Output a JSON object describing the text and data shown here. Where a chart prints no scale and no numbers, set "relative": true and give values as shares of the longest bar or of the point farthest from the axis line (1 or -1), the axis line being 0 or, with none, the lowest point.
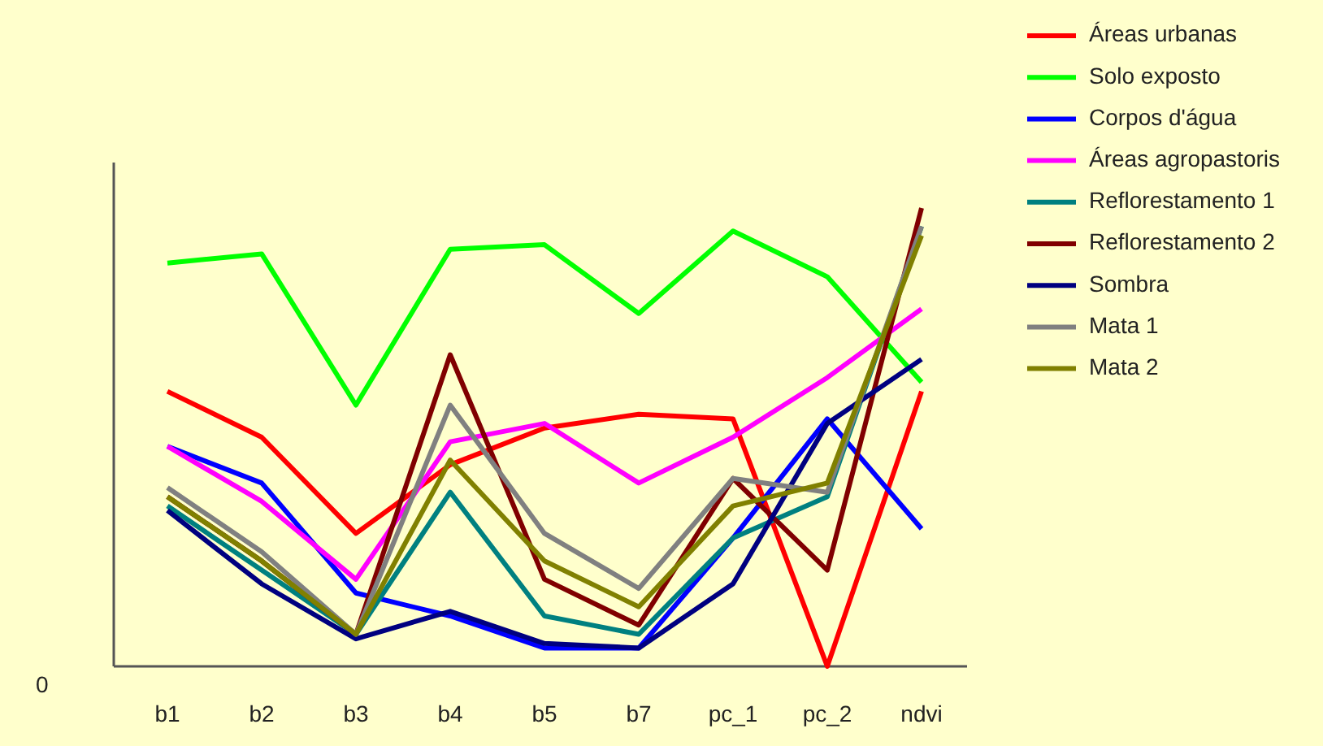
{
  "chart_data": {
    "type": "line",
    "relative": true,
    "categories": [
      "b1",
      "b2",
      "b3",
      "b4",
      "b5",
      "b7",
      "pc_1",
      "pc_2",
      "ndvi"
    ],
    "legend": "right",
    "grid": false,
    "marker": "none",
    "line_style": "solid",
    "annotations": [
      "0"
    ],
    "series": [
      {
        "name": "Áreas urbanas",
        "color": "#ff0000",
        "values": [
          0.6,
          0.5,
          0.29,
          0.44,
          0.52,
          0.55,
          0.54,
          0,
          0.6
        ]
      },
      {
        "name": "Solo exposto",
        "color": "#00ff00",
        "values": [
          0.88,
          0.9,
          0.57,
          0.91,
          0.92,
          0.77,
          0.95,
          0.85,
          0.62
        ]
      },
      {
        "name": "Corpos d'água",
        "color": "#0000ff",
        "values": [
          0.48,
          0.4,
          0.16,
          0.11,
          0.04,
          0.04,
          0.28,
          0.54,
          0.3
        ]
      },
      {
        "name": "Áreas agropastoris",
        "color": "#ff00ff",
        "values": [
          0.48,
          0.36,
          0.19,
          0.49,
          0.53,
          0.4,
          0.5,
          0.63,
          0.78
        ]
      },
      {
        "name": "Reflorestamento 1",
        "color": "#008080",
        "values": [
          0.35,
          0.21,
          0.07,
          0.38,
          0.11,
          0.07,
          0.28,
          0.37,
          0.96
        ]
      },
      {
        "name": "Reflorestamento 2",
        "color": "#800000",
        "values": [
          0.37,
          0.23,
          0.07,
          0.68,
          0.19,
          0.09,
          0.41,
          0.21,
          1
        ]
      },
      {
        "name": "Sombra",
        "color": "#000080",
        "values": [
          0.34,
          0.18,
          0.06,
          0.12,
          0.05,
          0.04,
          0.18,
          0.53,
          0.67
        ]
      },
      {
        "name": "Mata 1",
        "color": "#808080",
        "values": [
          0.39,
          0.25,
          0.07,
          0.57,
          0.29,
          0.17,
          0.41,
          0.38,
          0.96
        ]
      },
      {
        "name": "Mata 2",
        "color": "#808000",
        "values": [
          0.37,
          0.23,
          0.07,
          0.45,
          0.23,
          0.13,
          0.35,
          0.4,
          0.94
        ]
      }
    ]
  }
}
